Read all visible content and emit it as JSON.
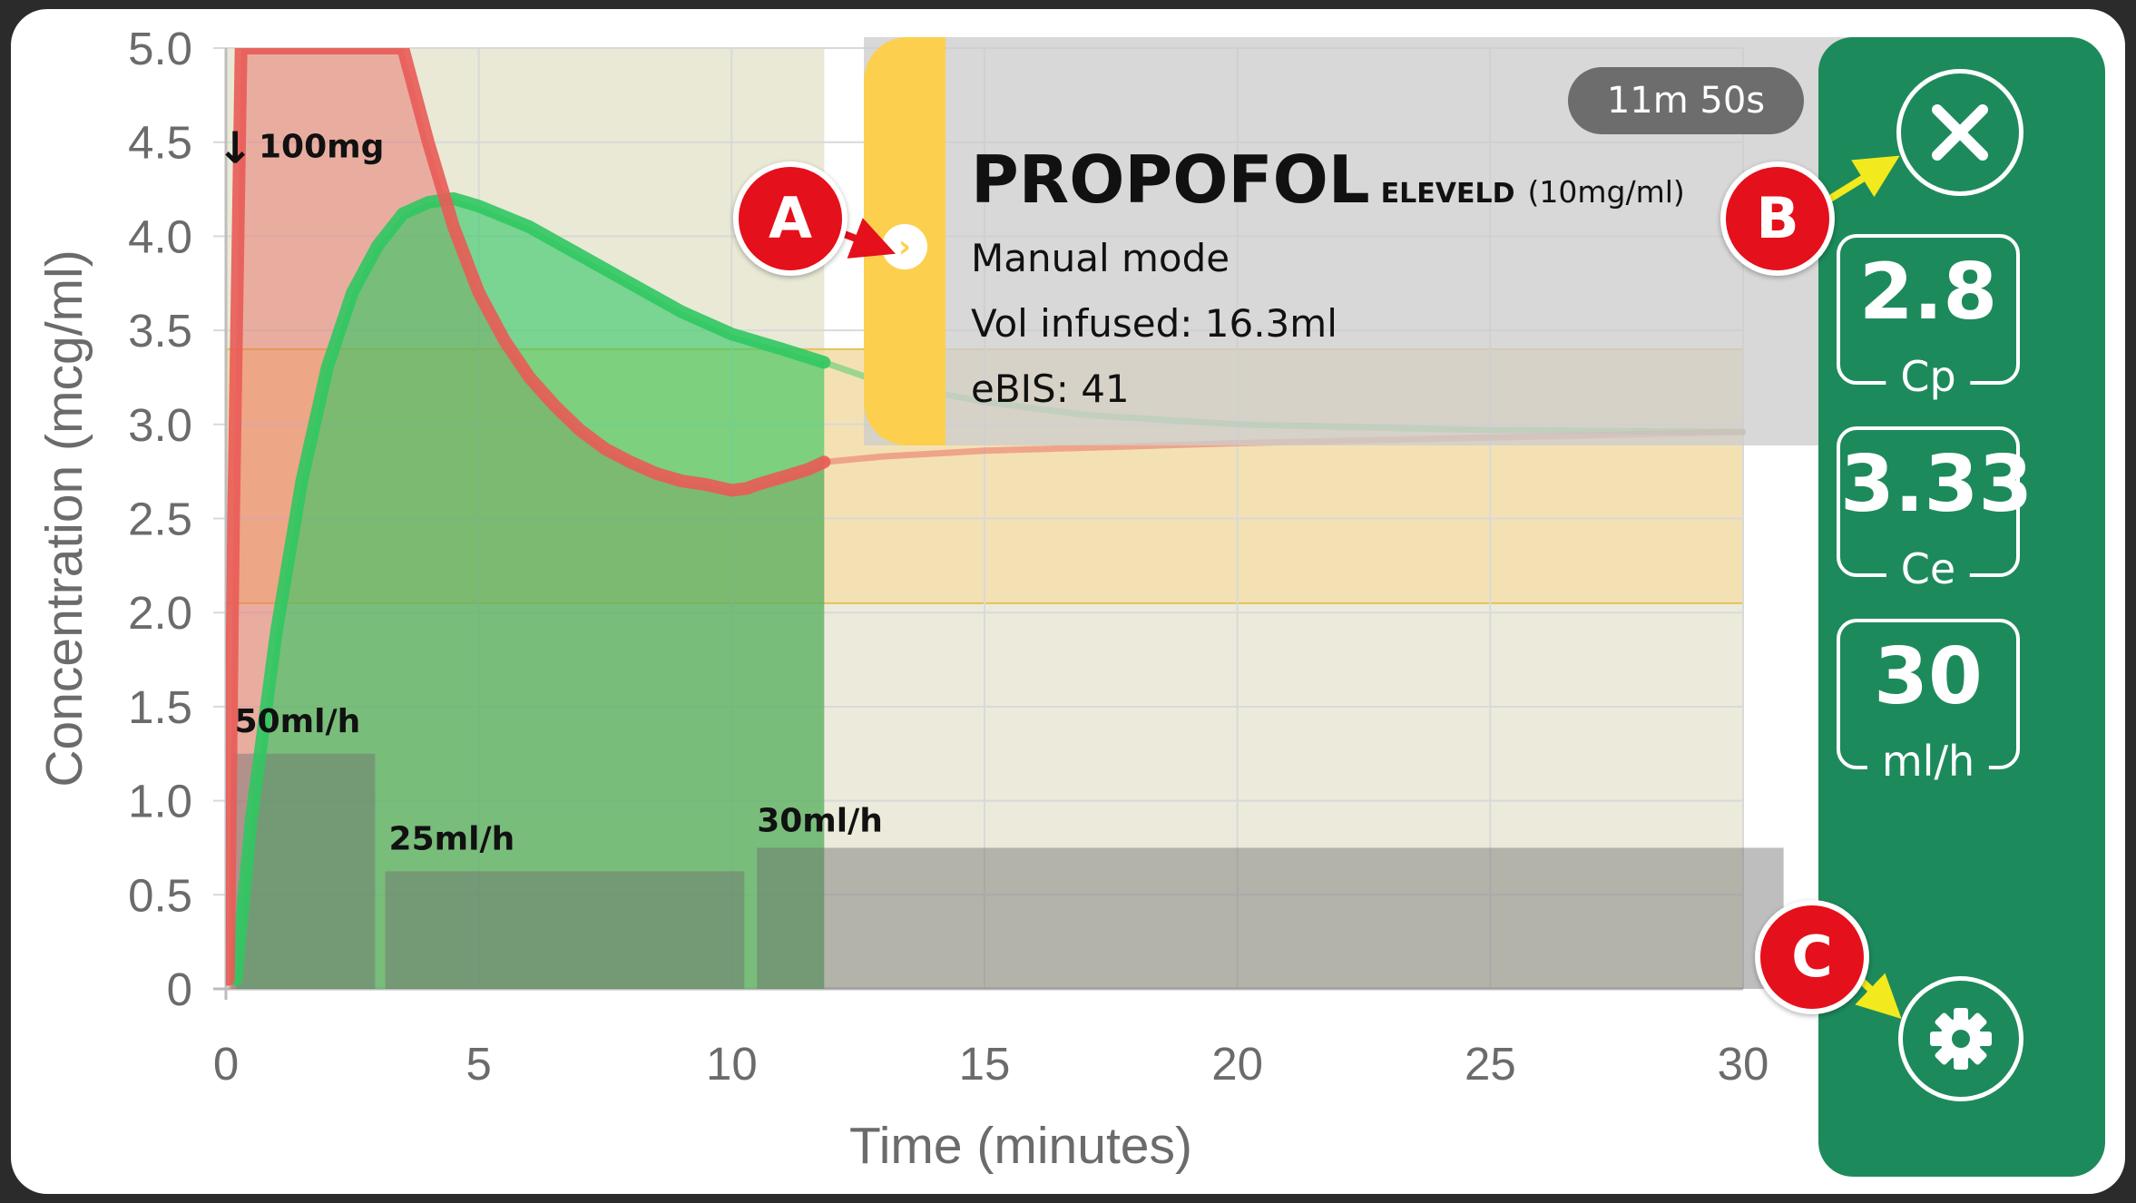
{
  "chart_data": {
    "type": "area",
    "xlabel": "Time (minutes)",
    "ylabel": "Concentration (mcg/ml)",
    "xlim": [
      0,
      30
    ],
    "ylim": [
      0,
      5
    ],
    "x_ticks": [
      "0",
      "5",
      "10",
      "15",
      "20",
      "25",
      "30"
    ],
    "y_ticks": [
      "0",
      "0.5",
      "1.0",
      "1.5",
      "2.0",
      "2.5",
      "3.0",
      "3.5",
      "4.0",
      "4.5",
      "5.0"
    ],
    "grid": true,
    "target_band": [
      2.05,
      3.4
    ],
    "now_minutes": 11.83,
    "series": [
      {
        "id": "cp",
        "color": "#e95b56",
        "x": [
          0.05,
          0.15,
          0.3,
          3.5,
          4.0,
          4.5,
          5.0,
          5.5,
          6.0,
          6.5,
          7.0,
          7.5,
          8.0,
          8.5,
          9.0,
          9.5,
          10.0,
          10.3,
          10.5,
          11.0,
          11.5,
          11.83,
          13,
          15,
          20,
          25,
          30
        ],
        "y": [
          0.05,
          2.5,
          5.0,
          5.0,
          4.5,
          4.05,
          3.7,
          3.45,
          3.25,
          3.1,
          2.97,
          2.87,
          2.8,
          2.74,
          2.7,
          2.68,
          2.65,
          2.66,
          2.68,
          2.72,
          2.76,
          2.8,
          2.83,
          2.86,
          2.9,
          2.93,
          2.96
        ]
      },
      {
        "id": "ce",
        "color": "#2fc862",
        "x": [
          0.2,
          0.5,
          1.0,
          1.5,
          2.0,
          2.5,
          3.0,
          3.5,
          4.0,
          4.5,
          5.0,
          6.0,
          7.0,
          8.0,
          9.0,
          10.0,
          11.0,
          11.83,
          13,
          15,
          17,
          20,
          25,
          30
        ],
        "y": [
          0.05,
          0.9,
          1.9,
          2.7,
          3.3,
          3.7,
          3.95,
          4.12,
          4.18,
          4.2,
          4.16,
          4.05,
          3.9,
          3.75,
          3.6,
          3.48,
          3.4,
          3.33,
          3.22,
          3.12,
          3.05,
          3.0,
          2.97,
          2.96
        ]
      }
    ],
    "infusion_bars": [
      {
        "label": "50ml/h",
        "start": 0.1,
        "end": 2.95,
        "rate": 50
      },
      {
        "label": "25ml/h",
        "start": 3.15,
        "end": 10.25,
        "rate": 25
      },
      {
        "label": "30ml/h",
        "start": 10.5,
        "end": 30.8,
        "rate": 30
      }
    ],
    "bolus": {
      "label": "100mg",
      "at_minutes": 0
    }
  },
  "drug": {
    "name": "PROPOFOL",
    "model": "ELEVELD",
    "concentration": "(10mg/ml)",
    "mode": "Manual mode",
    "vol_infused": "Vol infused: 16.3ml",
    "ebis": "eBIS: 41",
    "elapsed": "11m 50s"
  },
  "readouts": {
    "cp": {
      "value": "2.8",
      "unit": "Cp"
    },
    "ce": {
      "value": "3.33",
      "unit": "Ce"
    },
    "rate": {
      "value": "30",
      "unit": "ml/h"
    }
  },
  "icons": {
    "close": "close-icon",
    "settings": "gear-icon",
    "expand": "chevron-right-icon",
    "bolus": "down-arrow-icon"
  },
  "callouts": [
    "A",
    "B",
    "C"
  ],
  "colors": {
    "sidebar": "#1d8a5c",
    "drug_tab": "#fcd04e",
    "cp_line": "#e95b56",
    "ce_line": "#2fc862",
    "target_band": "#f0d79a",
    "callout": "#e4101b",
    "callout_arrow": "#f2ea1c"
  }
}
